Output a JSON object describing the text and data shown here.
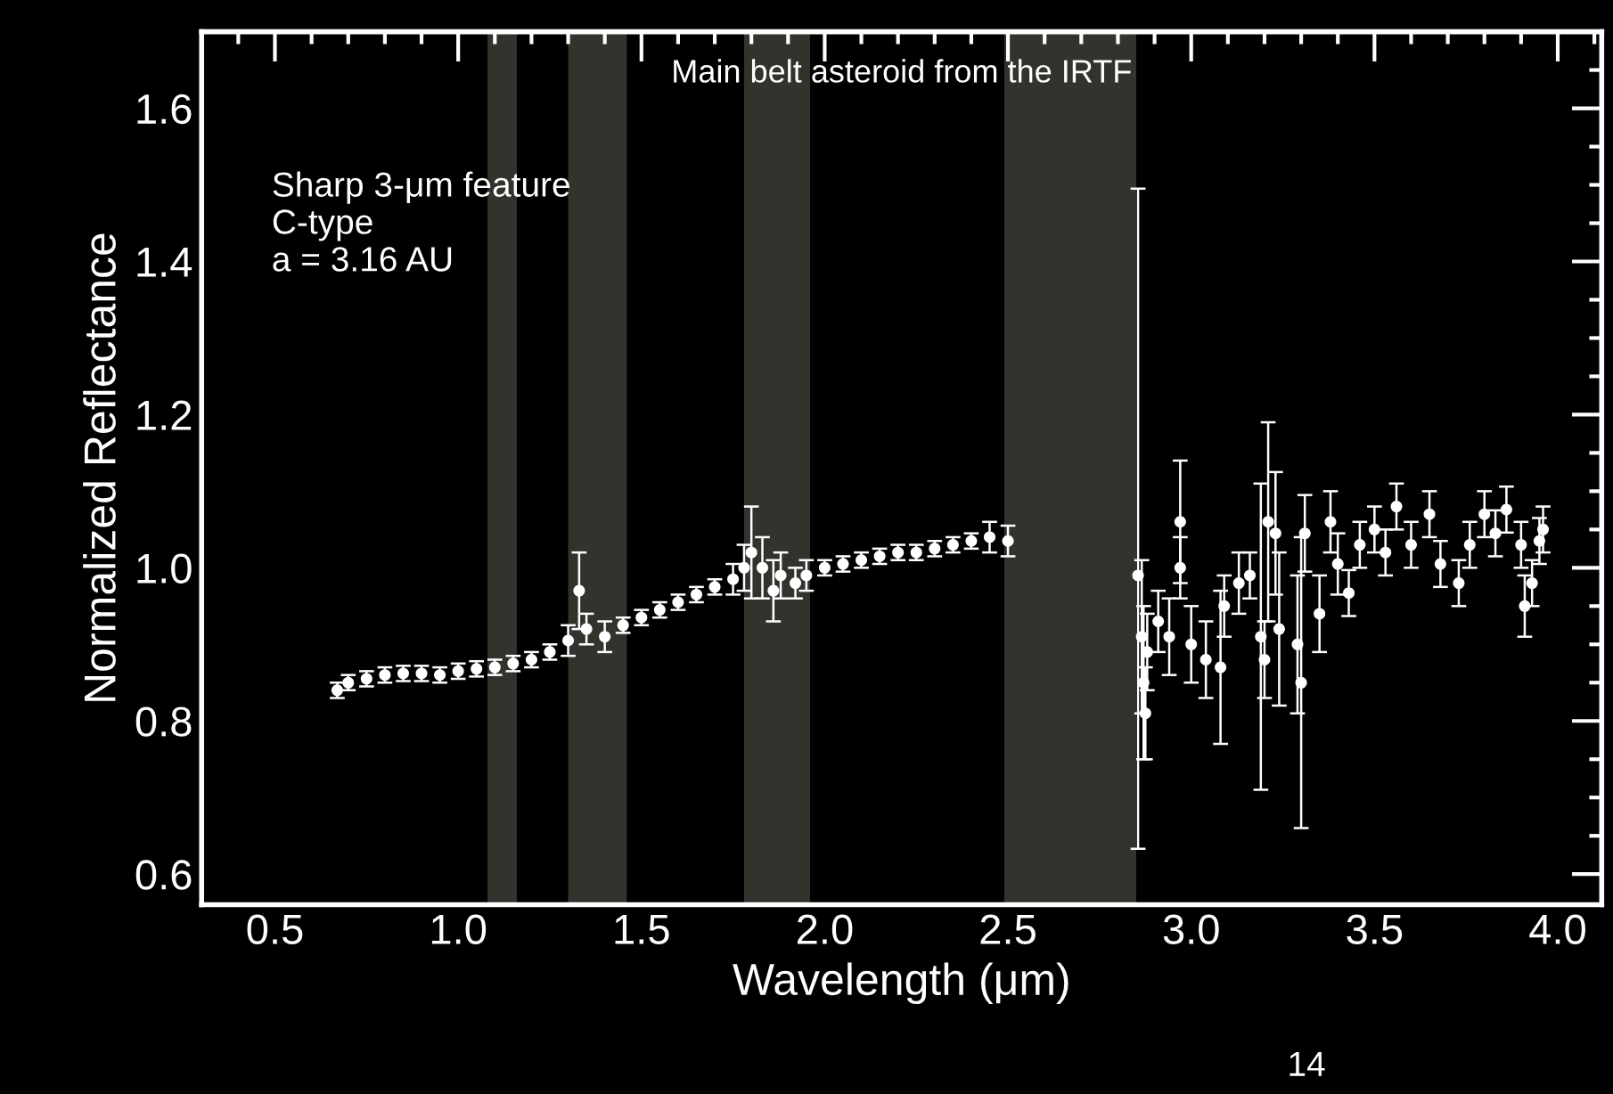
{
  "chart_data": {
    "type": "scatter",
    "title": "Main belt asteroid from the IRTF",
    "xlabel": "Wavelength (μm)",
    "ylabel": "Normalized Reflectance",
    "annotations": [
      "Sharp 3-μm feature\nC-type\na = 3.16 AU",
      "14"
    ],
    "xlim": [
      0.3,
      4.12
    ],
    "ylim": [
      0.56,
      1.7
    ],
    "xticks": [
      {
        "value": 0.3,
        "label": null
      },
      {
        "value": 0.4,
        "label": null
      },
      0.5,
      {
        "value": 0.6,
        "label": null
      },
      {
        "value": 0.7,
        "label": null
      },
      {
        "value": 0.8,
        "label": null
      },
      {
        "value": 0.9,
        "label": null
      },
      {
        "value": 1.0,
        "label": "1.0"
      },
      {
        "value": 1.1,
        "label": null
      },
      {
        "value": 1.2,
        "label": null
      },
      {
        "value": 1.3,
        "label": null
      },
      {
        "value": 1.4,
        "label": null
      },
      1.5,
      {
        "value": 1.6,
        "label": null
      },
      {
        "value": 1.7,
        "label": null
      },
      {
        "value": 1.8,
        "label": null
      },
      {
        "value": 1.9,
        "label": null
      },
      {
        "value": 2.0,
        "label": "2.0"
      },
      {
        "value": 2.1,
        "label": null
      },
      {
        "value": 2.2,
        "label": null
      },
      {
        "value": 2.3,
        "label": null
      },
      {
        "value": 2.4,
        "label": null
      },
      2.5,
      {
        "value": 2.6,
        "label": null
      },
      {
        "value": 2.7,
        "label": null
      },
      {
        "value": 2.8,
        "label": null
      },
      {
        "value": 2.9,
        "label": null
      },
      {
        "value": 3.0,
        "label": "3.0"
      },
      {
        "value": 3.1,
        "label": null
      },
      {
        "value": 3.2,
        "label": null
      },
      {
        "value": 3.3,
        "label": null
      },
      {
        "value": 3.4,
        "label": null
      },
      3.5,
      {
        "value": 3.6,
        "label": null
      },
      {
        "value": 3.7,
        "label": null
      },
      {
        "value": 3.8,
        "label": null
      },
      {
        "value": 3.9,
        "label": null
      },
      {
        "value": 4.0,
        "label": "4.0"
      },
      {
        "value": 4.1,
        "label": null
      }
    ],
    "yticks": [
      0.6,
      {
        "value": 0.65,
        "label": null
      },
      {
        "value": 0.7,
        "label": null
      },
      {
        "value": 0.75,
        "label": null
      },
      0.8,
      {
        "value": 0.85,
        "label": null
      },
      {
        "value": 0.9,
        "label": null
      },
      {
        "value": 0.95,
        "label": null
      },
      {
        "value": 1.0,
        "label": "1.0"
      },
      {
        "value": 1.05,
        "label": null
      },
      {
        "value": 1.1,
        "label": null
      },
      {
        "value": 1.15,
        "label": null
      },
      1.2,
      {
        "value": 1.25,
        "label": null
      },
      {
        "value": 1.3,
        "label": null
      },
      {
        "value": 1.35,
        "label": null
      },
      1.4,
      {
        "value": 1.45,
        "label": null
      },
      {
        "value": 1.5,
        "label": null
      },
      {
        "value": 1.55,
        "label": null
      },
      1.6,
      {
        "value": 1.65,
        "label": null
      }
    ],
    "grid": false,
    "marker": "circle",
    "bands": [
      {
        "axis": "x",
        "from": 1.08,
        "to": 1.16,
        "color": "#33332e"
      },
      {
        "axis": "x",
        "from": 1.3,
        "to": 1.46,
        "color": "#33332e"
      },
      {
        "axis": "x",
        "from": 1.78,
        "to": 1.96,
        "color": "#33332e"
      },
      {
        "axis": "x",
        "from": 2.49,
        "to": 2.85,
        "color": "#33332e"
      }
    ],
    "series": [
      {
        "color": "#ffffff",
        "x": [
          0.67,
          0.7,
          0.75,
          0.8,
          0.85,
          0.9,
          0.95,
          1.0,
          1.05,
          1.1,
          1.15,
          1.2,
          1.25,
          1.3,
          1.33,
          1.35,
          1.4,
          1.45,
          1.5,
          1.55,
          1.6,
          1.65,
          1.7,
          1.75,
          1.78,
          1.8,
          1.83,
          1.86,
          1.88,
          1.92,
          1.95,
          2.0,
          2.05,
          2.1,
          2.15,
          2.2,
          2.25,
          2.3,
          2.35,
          2.4,
          2.45,
          2.5,
          2.855,
          2.865,
          2.87,
          2.875,
          2.88,
          2.91,
          2.94,
          2.97,
          2.97,
          3.0,
          3.04,
          3.08,
          3.09,
          3.13,
          3.16,
          3.19,
          3.2,
          3.21,
          3.23,
          3.24,
          3.29,
          3.3,
          3.31,
          3.35,
          3.38,
          3.4,
          3.43,
          3.46,
          3.5,
          3.53,
          3.56,
          3.6,
          3.65,
          3.68,
          3.73,
          3.76,
          3.8,
          3.83,
          3.86,
          3.9,
          3.91,
          3.93,
          3.95,
          3.96
        ],
        "values": [
          0.84,
          0.85,
          0.855,
          0.86,
          0.862,
          0.862,
          0.86,
          0.865,
          0.868,
          0.87,
          0.875,
          0.88,
          0.89,
          0.905,
          0.97,
          0.92,
          0.91,
          0.925,
          0.935,
          0.945,
          0.955,
          0.965,
          0.975,
          0.985,
          1.0,
          1.02,
          1.0,
          0.97,
          0.99,
          0.98,
          0.99,
          1.0,
          1.005,
          1.01,
          1.015,
          1.02,
          1.02,
          1.025,
          1.03,
          1.035,
          1.04,
          1.035,
          0.99,
          0.91,
          0.85,
          0.81,
          0.89,
          0.93,
          0.91,
          1.06,
          1.0,
          0.9,
          0.88,
          0.87,
          0.95,
          0.98,
          0.99,
          0.91,
          0.88,
          1.06,
          1.045,
          0.92,
          0.9,
          0.85,
          1.045,
          0.94,
          1.06,
          1.005,
          0.967,
          1.03,
          1.05,
          1.02,
          1.08,
          1.03,
          1.07,
          1.005,
          0.98,
          1.03,
          1.07,
          1.045,
          1.076,
          1.03,
          0.95,
          0.98,
          1.035,
          1.05
        ],
        "errors": [
          0.01,
          0.01,
          0.01,
          0.01,
          0.01,
          0.01,
          0.01,
          0.01,
          0.01,
          0.01,
          0.01,
          0.01,
          0.01,
          0.02,
          0.05,
          0.02,
          0.02,
          0.01,
          0.01,
          0.01,
          0.01,
          0.01,
          0.01,
          0.02,
          0.03,
          0.06,
          0.04,
          0.04,
          0.03,
          0.02,
          0.02,
          0.01,
          0.01,
          0.01,
          0.01,
          0.01,
          0.01,
          0.01,
          0.01,
          0.01,
          0.02,
          0.02,
          [
            0.633,
            1.495
          ],
          0.1,
          0.1,
          0.06,
          0.05,
          0.04,
          0.05,
          0.08,
          0.04,
          0.05,
          0.05,
          0.1,
          0.04,
          0.04,
          0.03,
          0.2,
          0.05,
          0.13,
          0.08,
          0.1,
          0.09,
          0.19,
          0.05,
          0.05,
          0.04,
          0.04,
          0.03,
          0.03,
          0.03,
          0.03,
          0.03,
          0.03,
          0.03,
          0.03,
          0.03,
          0.03,
          0.03,
          0.03,
          0.03,
          0.03,
          0.04,
          0.03,
          0.03,
          0.03
        ]
      }
    ]
  }
}
